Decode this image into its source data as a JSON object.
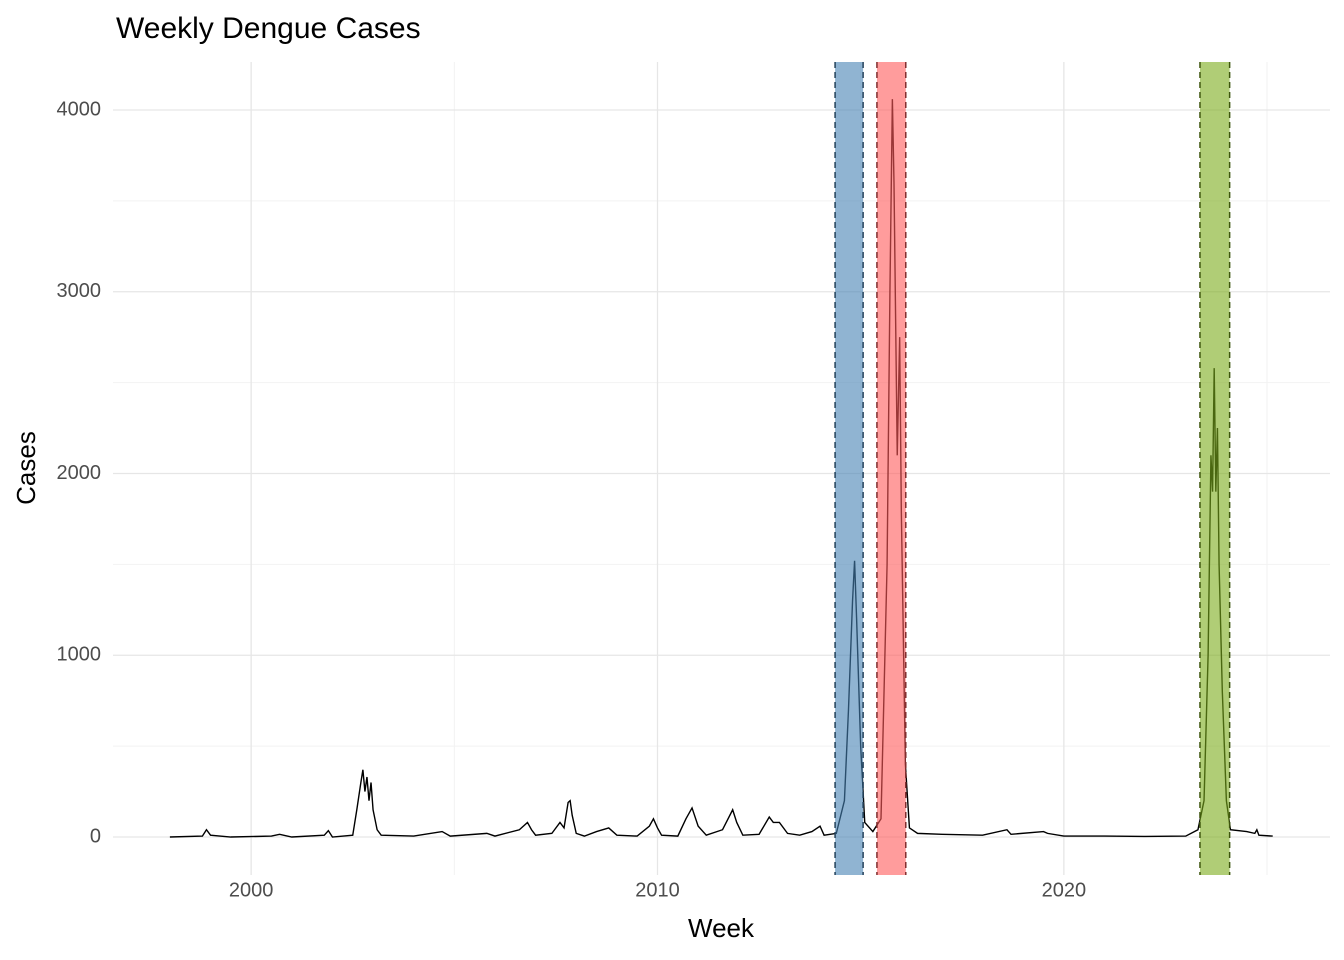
{
  "chart_data": {
    "type": "line",
    "title": "Weekly Dengue Cases",
    "x_label": "Week",
    "y_label": "Cases",
    "x": [
      1998.0,
      1998.8,
      1998.9,
      1999.0,
      1999.5,
      2000.5,
      2000.7,
      2001.0,
      2001.8,
      2001.9,
      2002.0,
      2002.5,
      2002.6,
      2002.7,
      2002.75,
      2002.8,
      2002.85,
      2002.9,
      2002.95,
      2003.0,
      2003.1,
      2003.2,
      2004.0,
      2004.7,
      2004.9,
      2005.8,
      2006.0,
      2006.6,
      2006.8,
      2006.9,
      2007.0,
      2007.4,
      2007.6,
      2007.7,
      2007.8,
      2007.85,
      2007.9,
      2008.0,
      2008.2,
      2008.5,
      2008.8,
      2009.0,
      2009.5,
      2009.8,
      2009.9,
      2010.0,
      2010.1,
      2010.5,
      2010.7,
      2010.85,
      2011.0,
      2011.2,
      2011.6,
      2011.85,
      2011.95,
      2012.1,
      2012.5,
      2012.75,
      2012.85,
      2013.0,
      2013.2,
      2013.5,
      2013.8,
      2014.0,
      2014.1,
      2014.4,
      2014.6,
      2014.7,
      2014.8,
      2014.85,
      2014.9,
      2015.0,
      2015.1,
      2015.3,
      2015.5,
      2015.65,
      2015.72,
      2015.78,
      2015.82,
      2015.9,
      2015.96,
      2016.0,
      2016.1,
      2016.2,
      2016.4,
      2017.0,
      2018.0,
      2018.6,
      2018.7,
      2019.5,
      2019.6,
      2020.0,
      2021.0,
      2022.0,
      2023.0,
      2023.3,
      2023.45,
      2023.55,
      2023.62,
      2023.66,
      2023.7,
      2023.74,
      2023.78,
      2023.82,
      2023.9,
      2024.0,
      2024.1,
      2024.5,
      2024.7,
      2024.75,
      2024.8,
      2025.14
    ],
    "values": [
      0,
      5,
      40,
      10,
      0,
      5,
      15,
      0,
      10,
      35,
      0,
      10,
      150,
      300,
      370,
      250,
      330,
      200,
      300,
      150,
      40,
      10,
      5,
      30,
      5,
      20,
      5,
      40,
      80,
      40,
      10,
      20,
      80,
      50,
      190,
      200,
      120,
      20,
      5,
      30,
      50,
      10,
      5,
      60,
      100,
      50,
      10,
      5,
      100,
      160,
      60,
      10,
      40,
      150,
      80,
      10,
      15,
      110,
      80,
      80,
      20,
      10,
      30,
      60,
      10,
      20,
      200,
      700,
      1300,
      1520,
      1200,
      500,
      80,
      30,
      100,
      1500,
      3000,
      4060,
      3600,
      2100,
      2750,
      1800,
      400,
      50,
      20,
      15,
      10,
      40,
      15,
      30,
      20,
      5,
      5,
      3,
      5,
      40,
      200,
      1000,
      2100,
      1900,
      2580,
      1900,
      2250,
      1500,
      800,
      200,
      40,
      30,
      20,
      40,
      10,
      5
    ],
    "color": "#000000",
    "highlights": [
      {
        "start": 2014.37,
        "end": 2015.06,
        "color": "#4682b4"
      },
      {
        "start": 2015.4,
        "end": 2016.11,
        "color": "#ff5a5a"
      },
      {
        "start": 2023.35,
        "end": 2024.08,
        "color": "#7cab1a"
      }
    ],
    "xlim": [
      1996.6,
      2026.55
    ],
    "xticks": [
      2000,
      2010,
      2020
    ],
    "ylim": [
      -209,
      4264
    ],
    "yticks": [
      0,
      1000,
      2000,
      3000,
      4000
    ],
    "grid": true
  }
}
